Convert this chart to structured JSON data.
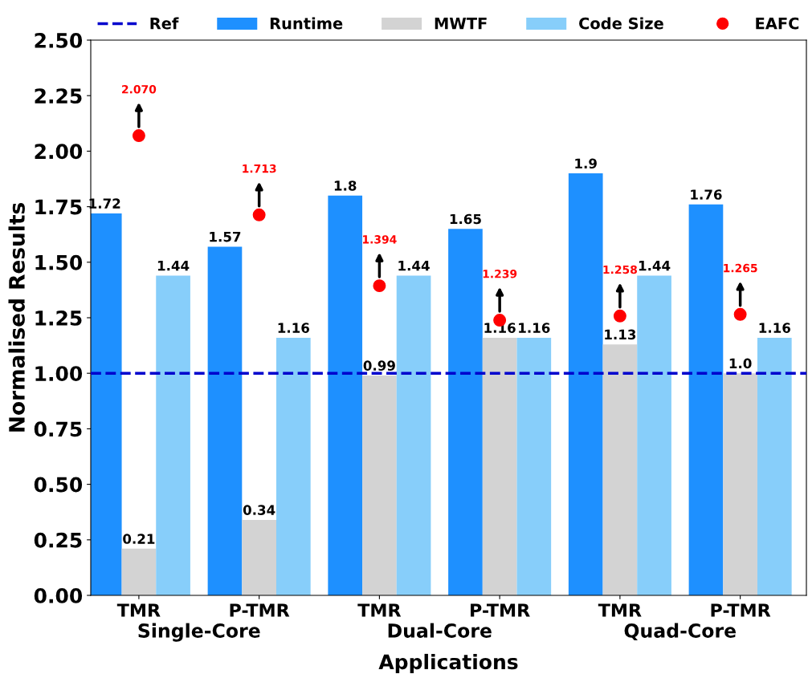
{
  "chart_data": {
    "type": "bar",
    "xlabel": "Applications",
    "ylabel": "Normalised Results",
    "categories": [
      "TMR",
      "P-TMR",
      "TMR",
      "P-TMR",
      "TMR",
      "P-TMR"
    ],
    "series": [
      {
        "name": "Runtime",
        "color": "#1e90ff",
        "values": [
          1.72,
          1.57,
          1.8,
          1.65,
          1.9,
          1.76
        ],
        "value_labels": [
          "1.72",
          "1.57",
          "1.8",
          "1.65",
          "1.9",
          "1.76"
        ]
      },
      {
        "name": "MWTF",
        "color": "#d3d3d3",
        "values": [
          0.21,
          0.34,
          0.99,
          1.16,
          1.13,
          1.0
        ],
        "value_labels": [
          "0.21",
          "0.34",
          "0.99",
          "1.16",
          "1.13",
          "1.0"
        ]
      },
      {
        "name": "Code Size",
        "color": "#87cefa",
        "values": [
          1.44,
          1.16,
          1.44,
          1.16,
          1.44,
          1.16
        ],
        "value_labels": [
          "1.44",
          "1.16",
          "1.44",
          "1.16",
          "1.44",
          "1.16"
        ]
      },
      {
        "name": "EAFC",
        "type": "scatter",
        "color": "#ff0000",
        "values": [
          2.07,
          1.713,
          1.394,
          1.239,
          1.258,
          1.265
        ],
        "value_labels": [
          "2.070",
          "1.713",
          "1.394",
          "1.239",
          "1.258",
          "1.265"
        ]
      }
    ],
    "ref_lines": [
      {
        "axis": "y",
        "value": 1.0,
        "label": "Ref",
        "color": "#0000cd",
        "line_style": "dashed"
      }
    ],
    "annotations": [
      "Single-Core",
      "Dual-Core",
      "Quad-Core"
    ],
    "ylim": [
      0,
      2.5
    ],
    "yticks": [
      {
        "value": 0,
        "label": "0.00"
      },
      {
        "value": 0.25,
        "label": "0.25"
      },
      {
        "value": 0.5,
        "label": "0.50"
      },
      {
        "value": 0.75,
        "label": "0.75"
      },
      {
        "value": 1.0,
        "label": "1.00"
      },
      {
        "value": 1.25,
        "label": "1.25"
      },
      {
        "value": 1.5,
        "label": "1.50"
      },
      {
        "value": 1.75,
        "label": "1.75"
      },
      {
        "value": 2.0,
        "label": "2.00"
      },
      {
        "value": 2.25,
        "label": "2.25"
      },
      {
        "value": 2.5,
        "label": "2.50"
      }
    ],
    "grid": false,
    "legend": "top",
    "marker": "circle"
  }
}
